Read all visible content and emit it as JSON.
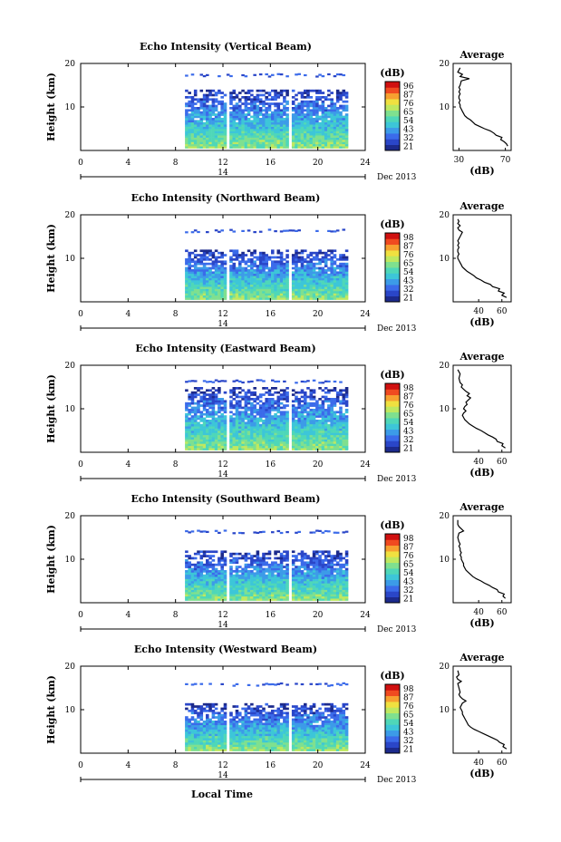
{
  "figure": {
    "xlabel": "Local Time",
    "date_label": "Dec 2013",
    "day_label": "14"
  },
  "colors": {
    "colormap": [
      "#1c2a8c",
      "#2a46c8",
      "#3b6bea",
      "#3c9be8",
      "#3dc6d8",
      "#4fd7b8",
      "#7fe08f",
      "#bfe860",
      "#f0e040",
      "#f7a030",
      "#f04a20",
      "#d01010"
    ]
  },
  "chart_data": [
    {
      "type": "heatmap",
      "title": "Echo Intensity (Vertical Beam)",
      "xlabel": "",
      "ylabel": "Height (km)",
      "xlim": [
        0,
        24
      ],
      "ylim": [
        0,
        20
      ],
      "xticks": [
        0,
        4,
        8,
        12,
        16,
        20,
        24
      ],
      "yticks": [
        10,
        20
      ],
      "data_start_hour": 8.8,
      "data_end_hour": 22.5,
      "gaps_hours": [
        12.3,
        17.5
      ],
      "top_km": 14,
      "upper_layer_km": 17.5,
      "colorbar": {
        "label": "(dB)",
        "ticks": [
          96,
          87,
          76,
          65,
          54,
          43,
          32,
          21
        ],
        "range": [
          21,
          96
        ]
      },
      "profile": {
        "title": "Average",
        "xlabel": "(dB)",
        "xticks": [
          30,
          70
        ],
        "xlim": [
          25,
          75
        ],
        "ylim": [
          0,
          20
        ],
        "yticks": [
          10,
          20
        ],
        "x": [
          72,
          71,
          69,
          66,
          67,
          62,
          60,
          57,
          52,
          48,
          44,
          42,
          40,
          37,
          35,
          34,
          33,
          32,
          31,
          31,
          30,
          31,
          30,
          30,
          31,
          30,
          31,
          30,
          31,
          32,
          39,
          31,
          33,
          29,
          30,
          31
        ],
        "y": [
          1,
          1.5,
          2,
          2.5,
          3,
          3.5,
          4,
          4.5,
          5,
          5.5,
          6,
          6.5,
          7,
          7.5,
          8,
          8.5,
          9,
          9.5,
          10,
          10.5,
          11,
          11.5,
          12,
          12.5,
          13,
          13.5,
          14,
          14.5,
          15,
          16,
          16.5,
          17,
          17.5,
          18,
          18.5,
          19
        ]
      }
    },
    {
      "type": "heatmap",
      "title": "Echo Intensity (Northward Beam)",
      "xlabel": "",
      "ylabel": "Height (km)",
      "xlim": [
        0,
        24
      ],
      "ylim": [
        0,
        20
      ],
      "xticks": [
        0,
        4,
        8,
        12,
        16,
        20,
        24
      ],
      "yticks": [
        10,
        20
      ],
      "data_start_hour": 8.8,
      "data_end_hour": 22.5,
      "gaps_hours": [
        12.3,
        17.5
      ],
      "top_km": 12,
      "upper_layer_km": 16.5,
      "colorbar": {
        "label": "(dB)",
        "ticks": [
          98,
          87,
          76,
          65,
          54,
          43,
          32,
          21
        ],
        "range": [
          21,
          98
        ]
      },
      "profile": {
        "title": "Average",
        "xlabel": "(dB)",
        "xticks": [
          40,
          60
        ],
        "xlim": [
          18,
          68
        ],
        "ylim": [
          0,
          20
        ],
        "yticks": [
          10,
          20
        ],
        "x": [
          64,
          60,
          62,
          57,
          58,
          52,
          50,
          45,
          42,
          38,
          36,
          33,
          30,
          28,
          26,
          25,
          24,
          23,
          22,
          22,
          23,
          22,
          22,
          23,
          22,
          23,
          22,
          24,
          26,
          23,
          22,
          24,
          22,
          23,
          22
        ],
        "y": [
          1,
          1.5,
          2,
          2.5,
          3,
          3.5,
          4,
          4.5,
          5,
          5.5,
          6,
          6.5,
          7,
          7.5,
          8,
          8.5,
          9,
          9.5,
          10,
          10.5,
          11,
          11.5,
          12,
          12.5,
          13,
          13.5,
          14,
          15,
          16,
          16.5,
          17,
          17.5,
          18,
          18.5,
          19
        ]
      }
    },
    {
      "type": "heatmap",
      "title": "Echo Intensity (Eastward Beam)",
      "xlabel": "",
      "ylabel": "Height (km)",
      "xlim": [
        0,
        24
      ],
      "ylim": [
        0,
        20
      ],
      "xticks": [
        0,
        4,
        8,
        12,
        16,
        20,
        24
      ],
      "yticks": [
        10,
        20
      ],
      "data_start_hour": 8.8,
      "data_end_hour": 22.5,
      "gaps_hours": [
        12.3,
        17.5
      ],
      "top_km": 15,
      "upper_layer_km": 16.5,
      "colorbar": {
        "label": "(dB)",
        "ticks": [
          98,
          87,
          76,
          65,
          54,
          43,
          32,
          21
        ],
        "range": [
          21,
          98
        ]
      },
      "profile": {
        "title": "Average",
        "xlabel": "(dB)",
        "xticks": [
          40,
          60
        ],
        "xlim": [
          18,
          68
        ],
        "ylim": [
          0,
          20
        ],
        "yticks": [
          10,
          20
        ],
        "x": [
          63,
          60,
          61,
          56,
          55,
          52,
          48,
          45,
          42,
          38,
          35,
          32,
          30,
          28,
          27,
          26,
          27,
          29,
          27,
          28,
          30,
          29,
          31,
          33,
          30,
          32,
          29,
          27,
          25,
          26,
          24,
          23,
          24,
          22
        ],
        "y": [
          1,
          1.5,
          2,
          2.5,
          3,
          3.5,
          4,
          4.5,
          5,
          5.5,
          6,
          6.5,
          7,
          7.5,
          8,
          8.5,
          9,
          9.5,
          10,
          10.5,
          11,
          11.5,
          12,
          12.5,
          13,
          13.5,
          14,
          14.5,
          15,
          15.5,
          16,
          17,
          18,
          19
        ]
      }
    },
    {
      "type": "heatmap",
      "title": "Echo Intensity (Southward Beam)",
      "xlabel": "",
      "ylabel": "Height (km)",
      "xlim": [
        0,
        24
      ],
      "ylim": [
        0,
        20
      ],
      "xticks": [
        0,
        4,
        8,
        12,
        16,
        20,
        24
      ],
      "yticks": [
        10,
        20
      ],
      "data_start_hour": 8.8,
      "data_end_hour": 22.5,
      "gaps_hours": [
        12.3,
        17.5
      ],
      "top_km": 12,
      "upper_layer_km": 16.5,
      "colorbar": {
        "label": "(dB)",
        "ticks": [
          98,
          87,
          76,
          65,
          54,
          43,
          32,
          21
        ],
        "range": [
          21,
          98
        ]
      },
      "profile": {
        "title": "Average",
        "xlabel": "(dB)",
        "xticks": [
          40,
          60
        ],
        "xlim": [
          18,
          68
        ],
        "ylim": [
          0,
          20
        ],
        "yticks": [
          10,
          20
        ],
        "x": [
          63,
          61,
          62,
          57,
          56,
          52,
          49,
          45,
          42,
          38,
          35,
          33,
          31,
          29,
          28,
          27,
          27,
          26,
          25,
          25,
          24,
          25,
          24,
          24,
          23,
          24,
          23,
          22,
          23,
          27,
          25,
          23,
          22,
          22
        ],
        "y": [
          1,
          1.5,
          2,
          2.5,
          3,
          3.5,
          4,
          4.5,
          5,
          5.5,
          6,
          6.5,
          7,
          7.5,
          8,
          8.5,
          9,
          9.5,
          10,
          10.5,
          11,
          11.5,
          12,
          12.5,
          13,
          13.5,
          14,
          15,
          16,
          16.5,
          17,
          17.5,
          18,
          19
        ]
      }
    },
    {
      "type": "heatmap",
      "title": "Echo Intensity (Westward Beam)",
      "xlabel": "Local Time",
      "ylabel": "Height (km)",
      "xlim": [
        0,
        24
      ],
      "ylim": [
        0,
        20
      ],
      "xticks": [
        0,
        4,
        8,
        12,
        16,
        20,
        24
      ],
      "yticks": [
        10,
        20
      ],
      "data_start_hour": 8.8,
      "data_end_hour": 22.5,
      "gaps_hours": [
        12.3,
        17.5
      ],
      "top_km": 11.5,
      "upper_layer_km": 16,
      "colorbar": {
        "label": "(dB)",
        "ticks": [
          98,
          87,
          76,
          65,
          54,
          43,
          32,
          21
        ],
        "range": [
          21,
          98
        ]
      },
      "profile": {
        "title": "Average",
        "xlabel": "(dB)",
        "xticks": [
          40,
          60
        ],
        "xlim": [
          18,
          68
        ],
        "ylim": [
          0,
          20
        ],
        "yticks": [
          10,
          20
        ],
        "x": [
          64,
          61,
          62,
          58,
          56,
          52,
          48,
          44,
          40,
          36,
          33,
          31,
          30,
          29,
          28,
          27,
          26,
          26,
          25,
          24,
          25,
          26,
          29,
          26,
          24,
          23,
          24,
          23,
          22,
          25,
          22,
          21,
          23,
          22
        ],
        "y": [
          1,
          1.5,
          2,
          2.5,
          3,
          3.5,
          4,
          4.5,
          5,
          5.5,
          6,
          6.5,
          7,
          7.5,
          8,
          8.5,
          9,
          9.5,
          10,
          10.5,
          11,
          11.5,
          12,
          12.5,
          13,
          13.5,
          14,
          15,
          16,
          16.5,
          17,
          17.5,
          18,
          19
        ]
      }
    }
  ]
}
